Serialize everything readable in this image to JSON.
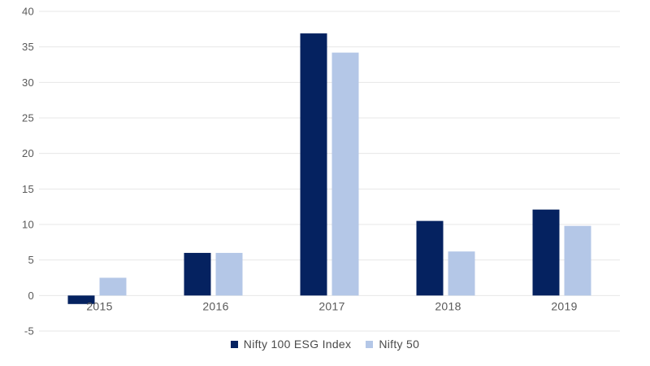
{
  "chart_data": {
    "type": "bar",
    "title": "",
    "subtitle": "",
    "xlabel": "",
    "ylabel": "",
    "categories": [
      "2015",
      "2016",
      "2017",
      "2018",
      "2019"
    ],
    "series": [
      {
        "name": "Nifty 100 ESG Index",
        "color": "#052260",
        "values": [
          -1.2,
          6.0,
          36.9,
          10.5,
          12.1
        ]
      },
      {
        "name": "Nifty 50",
        "color": "#B4C7E7",
        "values": [
          2.5,
          6.0,
          34.2,
          6.2,
          9.8
        ]
      }
    ],
    "ylim": [
      -5,
      40
    ],
    "ytick_step": 5,
    "yticks": [
      -5,
      0,
      5,
      10,
      15,
      20,
      25,
      30,
      35,
      40
    ],
    "grid": true,
    "gridlines": "horizontal",
    "legend_position": "bottom"
  },
  "colors": {
    "background": "#ffffff",
    "gridline": "#e7e7e7",
    "tick_text": "#595959",
    "legend_text": "#4a4a4a"
  }
}
